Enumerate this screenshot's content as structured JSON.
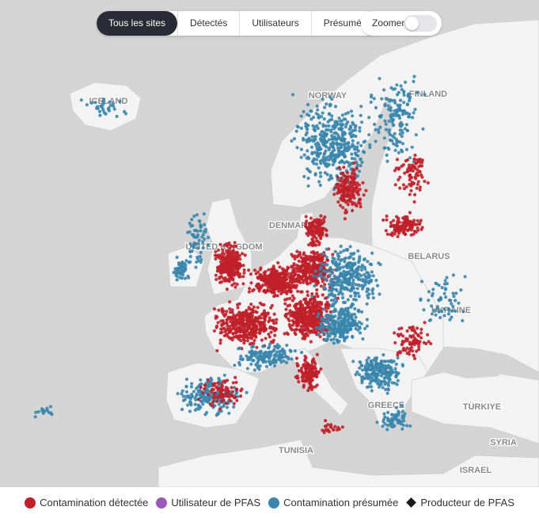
{
  "tabs": [
    "Tous les sites",
    "Détectés",
    "Utilisateurs",
    "Présumés"
  ],
  "toggle": {
    "label": "Zoomer"
  },
  "map_labels": [
    "ICELAND",
    "NORWAY",
    "FINLAND",
    "DENMARK",
    "UNITED KINGDOM",
    "BELARUS",
    "UKRAINE",
    "GREECE",
    "TÜRKIYE",
    "SYRIA",
    "TUNISIA",
    "ISRAEL"
  ],
  "legend": [
    {
      "name": "Contamination détectée",
      "color": "#c0202a"
    },
    {
      "name": "Utilisateur de PFAS",
      "color": "#9b59b6"
    },
    {
      "name": "Contamination présumée",
      "color": "#3a86ad"
    },
    {
      "name": "Producteur de PFAS",
      "color": "#1a1a1a"
    }
  ]
}
